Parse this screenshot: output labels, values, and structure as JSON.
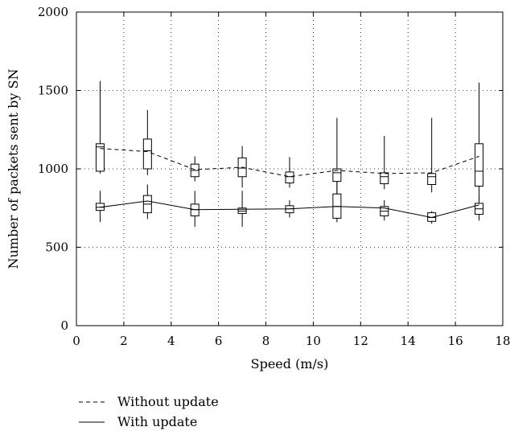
{
  "chart_data": {
    "type": "line",
    "xlabel": "Speed (m/s)",
    "ylabel": "Number of packets sent by SN",
    "xlim": [
      0,
      18
    ],
    "ylim": [
      0,
      2000
    ],
    "xticks": [
      0,
      2,
      4,
      6,
      8,
      10,
      12,
      14,
      16,
      18
    ],
    "yticks": [
      0,
      500,
      1000,
      1500,
      2000
    ],
    "xtick_labels": [
      "0",
      "2",
      "4",
      "6",
      "8",
      "10",
      "12",
      "14",
      "16",
      "18"
    ],
    "ytick_labels": [
      "0",
      "500",
      "1000",
      "1500",
      "2000"
    ],
    "grid": true,
    "legend_position": "bottom-left, below plot",
    "x": [
      1,
      3,
      5,
      7,
      9,
      11,
      13,
      15,
      17
    ],
    "series": [
      {
        "name": "Without update",
        "style": "dashed",
        "values": [
          1130,
          1110,
          995,
          1010,
          950,
          990,
          970,
          975,
          1080
        ],
        "boxes": [
          {
            "whisker_low": 970,
            "q1": 985,
            "median": 1140,
            "q3": 1160,
            "whisker_high": 1560
          },
          {
            "whisker_low": 960,
            "q1": 1000,
            "median": 1115,
            "q3": 1190,
            "whisker_high": 1375
          },
          {
            "whisker_low": 920,
            "q1": 950,
            "median": 990,
            "q3": 1030,
            "whisker_high": 1080
          },
          {
            "whisker_low": 880,
            "q1": 950,
            "median": 1005,
            "q3": 1070,
            "whisker_high": 1145
          },
          {
            "whisker_low": 880,
            "q1": 910,
            "median": 950,
            "q3": 980,
            "whisker_high": 1075
          },
          {
            "whisker_low": 730,
            "q1": 920,
            "median": 975,
            "q3": 1000,
            "whisker_high": 1325
          },
          {
            "whisker_low": 870,
            "q1": 905,
            "median": 950,
            "q3": 975,
            "whisker_high": 1210
          },
          {
            "whisker_low": 850,
            "q1": 900,
            "median": 950,
            "q3": 970,
            "whisker_high": 1325
          },
          {
            "whisker_low": 800,
            "q1": 890,
            "median": 985,
            "q3": 1160,
            "whisker_high": 1550
          }
        ]
      },
      {
        "name": "With update",
        "style": "solid",
        "values": [
          755,
          795,
          740,
          742,
          745,
          760,
          750,
          690,
          770
        ],
        "boxes": [
          {
            "whisker_low": 660,
            "q1": 735,
            "median": 755,
            "q3": 780,
            "whisker_high": 860
          },
          {
            "whisker_low": 680,
            "q1": 720,
            "median": 775,
            "q3": 830,
            "whisker_high": 900
          },
          {
            "whisker_low": 630,
            "q1": 700,
            "median": 740,
            "q3": 775,
            "whisker_high": 860
          },
          {
            "whisker_low": 630,
            "q1": 715,
            "median": 730,
            "q3": 750,
            "whisker_high": 860
          },
          {
            "whisker_low": 690,
            "q1": 720,
            "median": 745,
            "q3": 765,
            "whisker_high": 800
          },
          {
            "whisker_low": 660,
            "q1": 685,
            "median": 760,
            "q3": 840,
            "whisker_high": 920
          },
          {
            "whisker_low": 670,
            "q1": 700,
            "median": 730,
            "q3": 760,
            "whisker_high": 800
          },
          {
            "whisker_low": 650,
            "q1": 665,
            "median": 690,
            "q3": 720,
            "whisker_high": 730
          },
          {
            "whisker_low": 670,
            "q1": 710,
            "median": 745,
            "q3": 780,
            "whisker_high": 820
          }
        ]
      }
    ]
  }
}
